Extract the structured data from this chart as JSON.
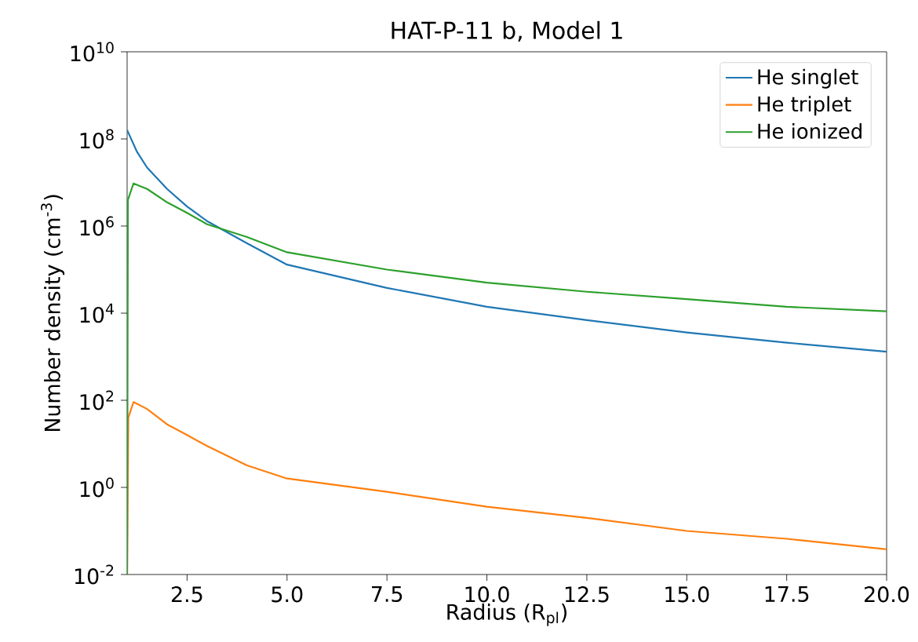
{
  "chart_data": {
    "type": "line",
    "title": "HAT-P-11 b, Model 1",
    "xlabel": "Radius (R$_{pl}$)",
    "ylabel": "Number density (cm$^{-3}$)",
    "log": "y",
    "legend": "top right",
    "grid": false,
    "marker": "none",
    "line_style": "solid",
    "xlim": [
      1,
      20
    ],
    "ylim": [
      0.01,
      10000000000.0
    ],
    "xticks": [
      2.5,
      {
        "value": 5,
        "label": "5.0"
      },
      7.5,
      {
        "value": 10,
        "label": "10.0"
      },
      12.5,
      {
        "value": 15,
        "label": "15.0"
      },
      17.5,
      {
        "value": 20,
        "label": "20.0"
      }
    ],
    "yticks": [
      {
        "value": 0.01,
        "label": "10$^{-2}$"
      },
      {
        "value": 1,
        "label": "10$^{0}$"
      },
      {
        "value": 100,
        "label": "10$^{2}$"
      },
      {
        "value": 10000,
        "label": "10$^{4}$"
      },
      {
        "value": 1000000,
        "label": "10$^{6}$"
      },
      {
        "value": 100000000,
        "label": "10$^{8}$"
      },
      {
        "value": 10000000000,
        "label": "10$^{10}$"
      }
    ],
    "series": [
      {
        "name": "He singlet",
        "color": "#1f77b4",
        "x": [
          1,
          1.25,
          1.5,
          2,
          2.5,
          3,
          4,
          5,
          7.5,
          10,
          12.5,
          15,
          17.5,
          20
        ],
        "values": [
          160000000.0,
          50000000.0,
          22000000.0,
          7100000.0,
          2800000.0,
          1300000.0,
          400000.0,
          130000.0,
          38000.0,
          14000.0,
          6900.0,
          3600.0,
          2100.0,
          1300.0
        ]
      },
      {
        "name": "He triplet",
        "color": "#ff7f0e",
        "x": [
          1,
          1.03,
          1.16,
          1.5,
          2,
          2.5,
          3,
          4,
          5,
          7.5,
          10,
          12.5,
          15,
          17.5,
          20
        ],
        "values": [
          0.01,
          40,
          91,
          63,
          28,
          16,
          8.9,
          3.2,
          1.6,
          0.79,
          0.36,
          0.2,
          0.1,
          0.066,
          0.038
        ]
      },
      {
        "name": "He ionized",
        "color": "#2ca02c",
        "x": [
          1,
          1.02,
          1.16,
          1.5,
          2,
          2.5,
          3,
          4,
          5,
          7.5,
          10,
          12.5,
          15,
          17.5,
          20
        ],
        "values": [
          0.01,
          4000000.0,
          9500000.0,
          7100000.0,
          3500000.0,
          2000000.0,
          1100000.0,
          560000.0,
          250000.0,
          100000.0,
          50000.0,
          31000.0,
          21000.0,
          14000.0,
          11000.0
        ]
      }
    ]
  }
}
